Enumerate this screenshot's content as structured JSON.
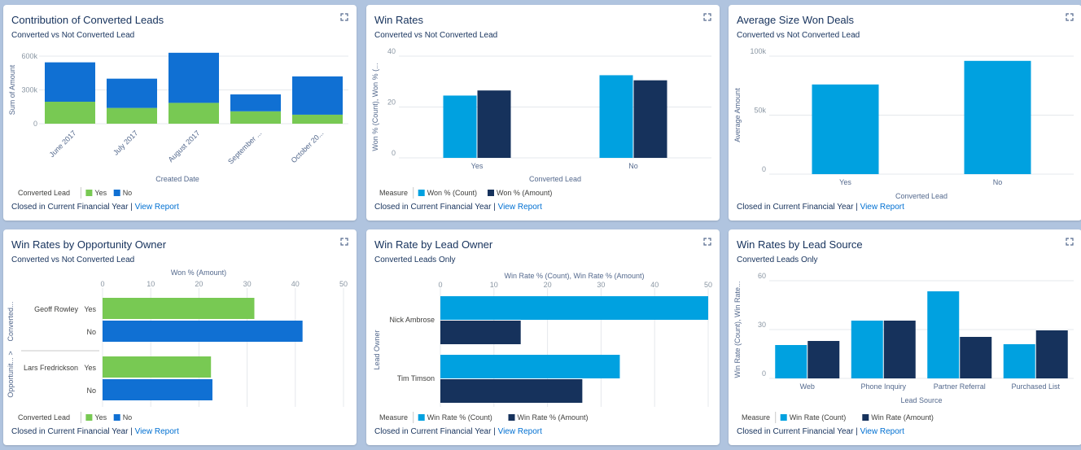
{
  "footer": {
    "period": "Closed in Current Financial Year",
    "separator": "|",
    "link": "View Report"
  },
  "colors": {
    "green": "#78c953",
    "blue": "#1070d3",
    "cyan": "#00a1e0",
    "navy": "#16325c"
  },
  "cards": {
    "c1": {
      "title": "Contribution of Converted Leads",
      "subtitle": "Converted vs Not Converted Lead",
      "chart_data": {
        "type": "bar",
        "stacked": true,
        "categories": [
          "June 2017",
          "July 2017",
          "August 2017",
          "September ...",
          "October 20..."
        ],
        "series": [
          {
            "name": "Yes",
            "values": [
              195000,
              140000,
              185000,
              110000,
              80000
            ]
          },
          {
            "name": "No",
            "values": [
              350000,
              260000,
              445000,
              150000,
              340000
            ]
          }
        ],
        "ylim": [
          0,
          600000
        ],
        "yticks": [
          "0",
          "300k",
          "600k"
        ],
        "xlabel": "Created Date",
        "ylabel": "Sum of Amount",
        "legend_title": "Converted Lead"
      }
    },
    "c2": {
      "title": "Win Rates",
      "subtitle": "Converted vs Not Converted Lead",
      "chart_data": {
        "type": "bar",
        "categories": [
          "Yes",
          "No"
        ],
        "series": [
          {
            "name": "Won % (Count)",
            "values": [
              24.5,
              32.5
            ]
          },
          {
            "name": "Won % (Amount)",
            "values": [
              26.5,
              30.5
            ]
          }
        ],
        "ylim": [
          0,
          40
        ],
        "yticks": [
          "0",
          "20",
          "40"
        ],
        "xlabel": "Converted Lead",
        "ylabel": "Won % (Count), Won % (...",
        "legend_title": "Measure"
      }
    },
    "c3": {
      "title": "Average Size Won Deals",
      "subtitle": "Converted vs Not Converted Lead",
      "chart_data": {
        "type": "bar",
        "categories": [
          "Yes",
          "No"
        ],
        "series": [
          {
            "name": "Average Amount",
            "values": [
              76000,
              96000
            ]
          }
        ],
        "ylim": [
          0,
          100000
        ],
        "yticks": [
          "0",
          "50k",
          "100k"
        ],
        "xlabel": "Converted Lead",
        "ylabel": "Average Amount"
      }
    },
    "c4": {
      "title": "Win Rates by Opportunity Owner",
      "subtitle": "Converted vs Not Converted Lead",
      "chart_data": {
        "type": "bar",
        "orientation": "horizontal",
        "groups": [
          {
            "owner": "Geoff Rowley",
            "rows": [
              {
                "label": "Yes",
                "value": 31.5
              },
              {
                "label": "No",
                "value": 41.5
              }
            ]
          },
          {
            "owner": "Lars Fredrickson",
            "rows": [
              {
                "label": "Yes",
                "value": 22.5
              },
              {
                "label": "No",
                "value": 22.8
              }
            ]
          }
        ],
        "xlim": [
          0,
          50
        ],
        "xticks": [
          "0",
          "10",
          "20",
          "30",
          "40",
          "50"
        ],
        "xlabel": "Won % (Amount)",
        "ylabel_owner": "Opportunit... >",
        "ylabel_converted": "Converted...",
        "legend_title": "Converted Lead",
        "legend": [
          "Yes",
          "No"
        ]
      }
    },
    "c5": {
      "title": "Win Rate by Lead Owner",
      "subtitle": "Converted Leads Only",
      "chart_data": {
        "type": "bar",
        "orientation": "horizontal",
        "categories": [
          "Nick Ambrose",
          "Tim Timson"
        ],
        "series": [
          {
            "name": "Win Rate % (Count)",
            "values": [
              50,
              33.5
            ]
          },
          {
            "name": "Win Rate % (Amount)",
            "values": [
              15,
              26.5
            ]
          }
        ],
        "xlim": [
          0,
          50
        ],
        "xticks": [
          "0",
          "10",
          "20",
          "30",
          "40",
          "50"
        ],
        "xlabel": "Win Rate % (Count), Win Rate % (Amount)",
        "ylabel": "Lead Owner",
        "legend_title": "Measure"
      }
    },
    "c6": {
      "title": "Win Rates by Lead Source",
      "subtitle": "Converted Leads Only",
      "chart_data": {
        "type": "bar",
        "categories": [
          "Web",
          "Phone Inquiry",
          "Partner Referral",
          "Purchased List"
        ],
        "series": [
          {
            "name": "Win Rate (Count)",
            "values": [
              20.5,
              35.5,
              53.5,
              21
            ]
          },
          {
            "name": "Win Rate (Amount)",
            "values": [
              23,
              35.5,
              25.5,
              29.5
            ]
          }
        ],
        "ylim": [
          0,
          60
        ],
        "yticks": [
          "0",
          "30",
          "60"
        ],
        "xlabel": "Lead Source",
        "ylabel": "Win Rate (Count), Win Rate...",
        "legend_title": "Measure"
      }
    }
  }
}
